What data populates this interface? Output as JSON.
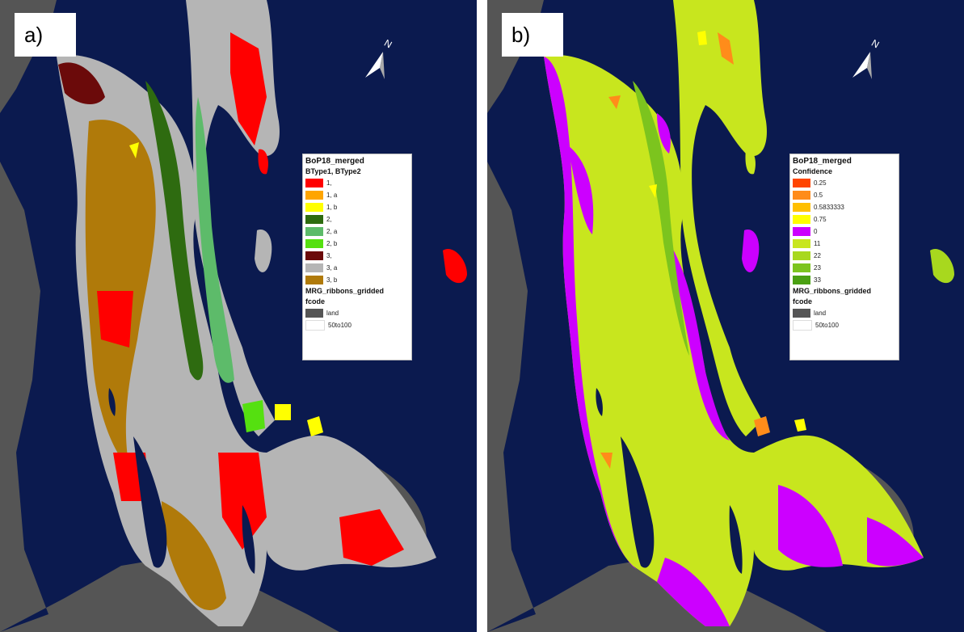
{
  "panels": {
    "a": {
      "label": "a)",
      "legend": {
        "title": "BoP18_merged",
        "field": "BType1, BType2",
        "classes": [
          {
            "label": "1,",
            "color": "#ff0000"
          },
          {
            "label": "1, a",
            "color": "#ffa500"
          },
          {
            "label": "1, b",
            "color": "#ffff00"
          },
          {
            "label": "2,",
            "color": "#2e6b10"
          },
          {
            "label": "2, a",
            "color": "#5dbb6a"
          },
          {
            "label": "2, b",
            "color": "#55e010"
          },
          {
            "label": "3,",
            "color": "#6b0a0a"
          },
          {
            "label": "3, a",
            "color": "#b5b5b5"
          },
          {
            "label": "3, b",
            "color": "#b07a0a"
          }
        ],
        "layer2_title": "MRG_ribbons_gridded",
        "layer2_field": "fcode",
        "layer2_classes": [
          {
            "label": "land",
            "color": "#555555"
          },
          {
            "label": "50to100",
            "color": "#ffffff"
          }
        ]
      }
    },
    "b": {
      "label": "b)",
      "legend": {
        "title": "BoP18_merged",
        "field": "Confidence",
        "classes": [
          {
            "label": "0.25",
            "color": "#ff4500"
          },
          {
            "label": "0.5",
            "color": "#ff8c1a"
          },
          {
            "label": "0.5833333",
            "color": "#ffbf00"
          },
          {
            "label": "0.75",
            "color": "#ffff00"
          },
          {
            "label": "0",
            "color": "#cc00ff"
          },
          {
            "label": "11",
            "color": "#c8e61e"
          },
          {
            "label": "22",
            "color": "#a8d81e"
          },
          {
            "label": "23",
            "color": "#7cc41e"
          },
          {
            "label": "33",
            "color": "#4aa012"
          }
        ],
        "layer2_title": "MRG_ribbons_gridded",
        "layer2_field": "fcode",
        "layer2_classes": [
          {
            "label": "land",
            "color": "#555555"
          },
          {
            "label": "50to100",
            "color": "#ffffff"
          }
        ]
      }
    }
  },
  "colors": {
    "water": "#0b1a4f",
    "land": "#555555"
  }
}
